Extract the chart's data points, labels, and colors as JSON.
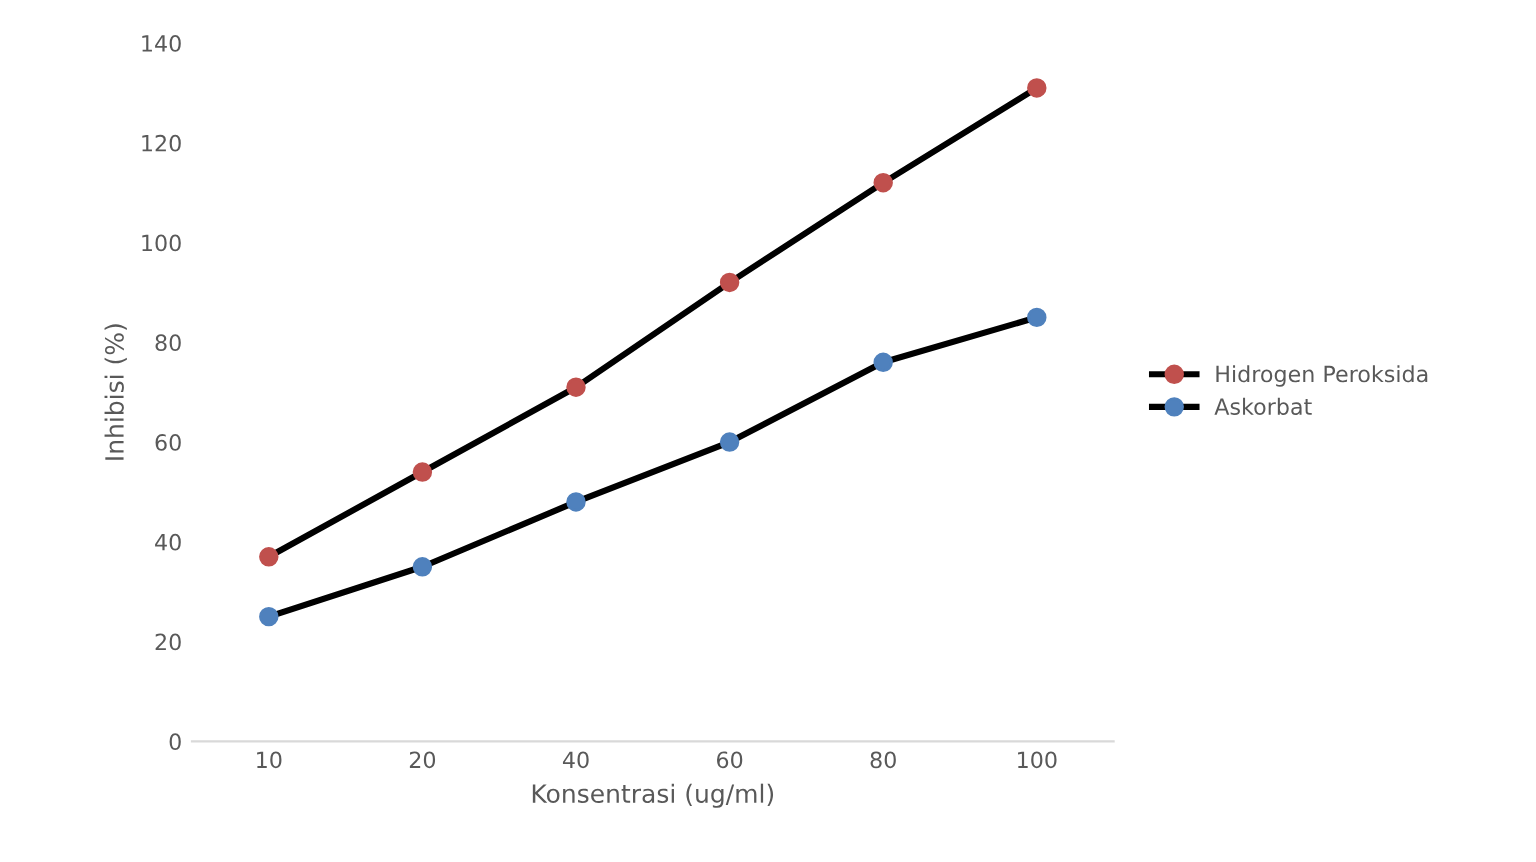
{
  "chart_data": {
    "type": "line",
    "xlabel": "Konsentrasi (ug/ml)",
    "ylabel": "Inhibisi (%)",
    "categories": [
      "10",
      "20",
      "40",
      "60",
      "80",
      "100"
    ],
    "series": [
      {
        "name": "Hidrogen Peroksida",
        "color": "#c0504d",
        "values": [
          37,
          54,
          71,
          92,
          112,
          131
        ]
      },
      {
        "name": "Askorbat",
        "color": "#4f81bd",
        "values": [
          25,
          35,
          48,
          60,
          76,
          85
        ]
      }
    ],
    "ylim": [
      0,
      140
    ],
    "yticks": [
      0,
      20,
      40,
      60,
      80,
      100,
      120,
      140
    ],
    "grid": false,
    "legend": "right",
    "marker": "circle",
    "line_style": "solid"
  }
}
